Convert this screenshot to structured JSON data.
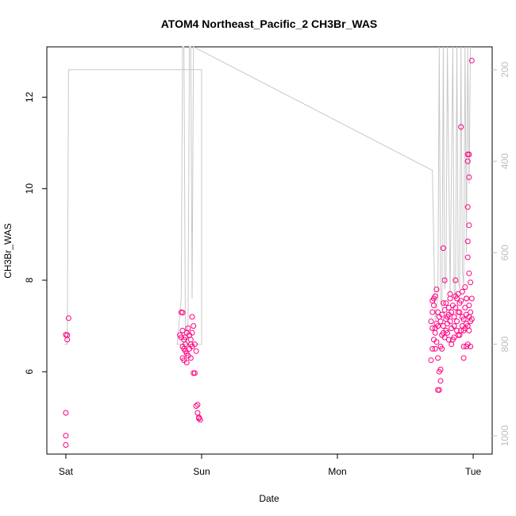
{
  "chart_data": {
    "type": "scatter",
    "title": "ATOM4 Northeast_Pacific_2 CH3Br_WAS",
    "xlabel": "Date",
    "ylabel": "CH3Br_WAS",
    "x_tick_labels": [
      "Sat",
      "Sun",
      "Mon",
      "Tue"
    ],
    "x_tick_days": [
      0,
      1,
      2,
      3
    ],
    "xlim_days": [
      -0.14,
      3.14
    ],
    "ylim": [
      4.2,
      13.1
    ],
    "y_ticks": [
      6,
      8,
      10,
      12
    ],
    "y2_ticks": [
      200,
      400,
      600,
      800,
      1000
    ],
    "y2lim": [
      1040,
      150
    ],
    "grid": false,
    "point_color": "#ff0080",
    "line_color": "#c8c8c8",
    "series": [
      {
        "values": [
          [
            0.01,
            6.8
          ],
          [
            0.01,
            6.7
          ],
          [
            0.02,
            7.17
          ],
          [
            0.0,
            6.81
          ],
          [
            0.0,
            5.1
          ],
          [
            0.0,
            4.6
          ],
          [
            0.0,
            4.4
          ],
          [
            0.85,
            7.3
          ],
          [
            0.86,
            7.29
          ],
          [
            0.84,
            6.8
          ],
          [
            0.85,
            6.75
          ],
          [
            0.86,
            6.9
          ],
          [
            0.87,
            6.7
          ],
          [
            0.88,
            6.6
          ],
          [
            0.86,
            6.55
          ],
          [
            0.87,
            6.5
          ],
          [
            0.88,
            6.45
          ],
          [
            0.89,
            6.4
          ],
          [
            0.86,
            6.3
          ],
          [
            0.87,
            6.25
          ],
          [
            0.89,
            6.2
          ],
          [
            0.9,
            6.35
          ],
          [
            0.91,
            6.5
          ],
          [
            0.92,
            6.6
          ],
          [
            0.88,
            6.75
          ],
          [
            0.89,
            6.85
          ],
          [
            0.9,
            6.95
          ],
          [
            0.91,
            6.8
          ],
          [
            0.92,
            6.7
          ],
          [
            0.93,
            6.55
          ],
          [
            0.93,
            6.85
          ],
          [
            0.94,
            7.0
          ],
          [
            0.93,
            7.2
          ],
          [
            0.94,
            5.97
          ],
          [
            0.95,
            5.97
          ],
          [
            0.96,
            5.25
          ],
          [
            0.97,
            5.28
          ],
          [
            0.97,
            5.1
          ],
          [
            0.98,
            4.98
          ],
          [
            0.98,
            5.0
          ],
          [
            0.99,
            4.95
          ],
          [
            0.96,
            6.45
          ],
          [
            0.95,
            6.6
          ],
          [
            0.92,
            6.3
          ],
          [
            2.7,
            7.55
          ],
          [
            2.71,
            7.6
          ],
          [
            2.72,
            7.65
          ],
          [
            2.71,
            7.45
          ],
          [
            2.7,
            7.3
          ],
          [
            2.69,
            7.1
          ],
          [
            2.7,
            6.95
          ],
          [
            2.71,
            6.7
          ],
          [
            2.72,
            6.5
          ],
          [
            2.7,
            6.5
          ],
          [
            2.69,
            6.25
          ],
          [
            2.72,
            6.85
          ],
          [
            2.73,
            7.05
          ],
          [
            2.74,
            7.3
          ],
          [
            2.73,
            7.8
          ],
          [
            2.74,
            6.3
          ],
          [
            2.75,
            6.0
          ],
          [
            2.74,
            5.6
          ],
          [
            2.75,
            5.6
          ],
          [
            2.76,
            5.8
          ],
          [
            2.76,
            6.05
          ],
          [
            2.77,
            6.5
          ],
          [
            2.77,
            6.8
          ],
          [
            2.76,
            7.1
          ],
          [
            2.78,
            7.5
          ],
          [
            2.79,
            8.0
          ],
          [
            2.8,
            7.5
          ],
          [
            2.8,
            6.9
          ],
          [
            2.81,
            7.2
          ],
          [
            2.82,
            7.4
          ],
          [
            2.83,
            7.7
          ],
          [
            2.84,
            7.3
          ],
          [
            2.85,
            6.7
          ],
          [
            2.86,
            7.0
          ],
          [
            2.87,
            8.0
          ],
          [
            2.87,
            7.4
          ],
          [
            2.88,
            7.1
          ],
          [
            2.89,
            6.8
          ],
          [
            2.9,
            7.3
          ],
          [
            2.91,
            7.55
          ],
          [
            2.92,
            7.2
          ],
          [
            2.93,
            6.9
          ],
          [
            2.94,
            7.4
          ],
          [
            2.95,
            7.6
          ],
          [
            2.96,
            7.0
          ],
          [
            2.97,
            7.2
          ],
          [
            2.78,
            8.7
          ],
          [
            2.91,
            11.35
          ],
          [
            2.96,
            10.75
          ],
          [
            2.97,
            10.75
          ],
          [
            2.96,
            10.6
          ],
          [
            2.97,
            10.25
          ],
          [
            2.96,
            9.6
          ],
          [
            2.97,
            9.2
          ],
          [
            2.96,
            8.85
          ],
          [
            2.96,
            8.5
          ],
          [
            2.97,
            8.15
          ],
          [
            2.98,
            7.95
          ],
          [
            2.99,
            12.8
          ],
          [
            2.98,
            7.1
          ],
          [
            2.99,
            7.15
          ],
          [
            2.93,
            6.55
          ],
          [
            2.95,
            6.55
          ],
          [
            2.98,
            6.55
          ],
          [
            2.82,
            6.7
          ],
          [
            2.84,
            6.6
          ],
          [
            2.89,
            7.7
          ],
          [
            2.9,
            7.5
          ],
          [
            2.92,
            7.75
          ],
          [
            2.94,
            7.85
          ],
          [
            2.95,
            7.6
          ],
          [
            2.93,
            6.3
          ],
          [
            2.88,
            6.9
          ],
          [
            2.86,
            6.75
          ],
          [
            2.83,
            7.1
          ],
          [
            2.81,
            6.85
          ],
          [
            2.79,
            6.75
          ],
          [
            2.77,
            7.25
          ],
          [
            2.78,
            6.85
          ],
          [
            2.8,
            7.15
          ],
          [
            2.84,
            6.95
          ],
          [
            2.86,
            7.2
          ],
          [
            2.9,
            6.8
          ],
          [
            2.92,
            7.0
          ],
          [
            2.94,
            6.95
          ],
          [
            2.96,
            6.6
          ],
          [
            2.95,
            7.05
          ],
          [
            2.97,
            6.9
          ],
          [
            2.98,
            7.3
          ],
          [
            2.99,
            7.6
          ],
          [
            2.85,
            7.45
          ],
          [
            2.87,
            7.65
          ],
          [
            2.89,
            7.3
          ],
          [
            2.83,
            7.6
          ],
          [
            2.81,
            7.05
          ],
          [
            2.79,
            7.35
          ],
          [
            2.75,
            7.2
          ],
          [
            2.73,
            6.65
          ],
          [
            2.72,
            6.95
          ],
          [
            2.74,
            7.0
          ],
          [
            2.76,
            6.55
          ],
          [
            2.78,
            7.0
          ],
          [
            2.82,
            7.25
          ],
          [
            2.88,
            7.6
          ],
          [
            2.91,
            6.9
          ],
          [
            2.93,
            7.15
          ],
          [
            2.95,
            7.25
          ],
          [
            2.97,
            7.45
          ]
        ]
      },
      {
        "axis": "right",
        "values": [
          [
            -0.01,
            800
          ],
          [
            0.01,
            800
          ],
          [
            0.02,
            200
          ],
          [
            1.0,
            200
          ],
          [
            1.0,
            800
          ],
          [
            0.82,
            800
          ],
          [
            0.83,
            770
          ],
          [
            0.84,
            730
          ],
          [
            0.85,
            700
          ],
          [
            0.86,
            150
          ],
          [
            0.87,
            150
          ],
          [
            0.88,
            760
          ],
          [
            0.89,
            800
          ],
          [
            0.9,
            750
          ],
          [
            0.91,
            150
          ],
          [
            0.92,
            150
          ],
          [
            0.93,
            700
          ],
          [
            0.94,
            150
          ],
          [
            2.7,
            420
          ],
          [
            2.72,
            750
          ],
          [
            2.74,
            700
          ],
          [
            2.75,
            150
          ],
          [
            2.76,
            700
          ],
          [
            2.77,
            720
          ],
          [
            2.78,
            150
          ],
          [
            2.79,
            680
          ],
          [
            2.8,
            650
          ],
          [
            2.81,
            150
          ],
          [
            2.83,
            690
          ],
          [
            2.85,
            150
          ],
          [
            2.86,
            680
          ],
          [
            2.87,
            700
          ],
          [
            2.88,
            150
          ],
          [
            2.89,
            660
          ],
          [
            2.9,
            680
          ],
          [
            2.91,
            150
          ],
          [
            2.92,
            640
          ],
          [
            2.93,
            670
          ],
          [
            2.94,
            150
          ],
          [
            2.95,
            600
          ],
          [
            2.96,
            150
          ],
          [
            2.97,
            450
          ],
          [
            2.98,
            150
          ]
        ]
      }
    ]
  }
}
